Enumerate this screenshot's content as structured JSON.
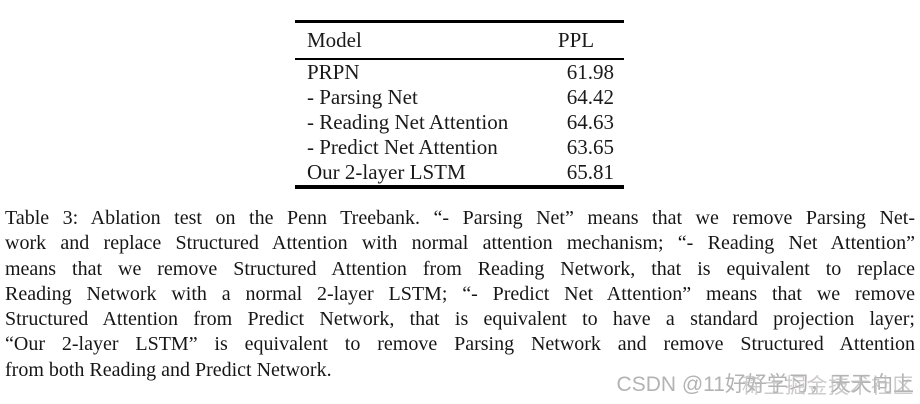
{
  "table": {
    "columns": [
      "Model",
      "PPL"
    ],
    "rows": [
      {
        "model": "PRPN",
        "ppl": "61.98"
      },
      {
        "model": "- Parsing Net",
        "ppl": "64.42"
      },
      {
        "model": "- Reading Net Attention",
        "ppl": "64.63"
      },
      {
        "model": "- Predict Net Attention",
        "ppl": "63.65"
      },
      {
        "model": "Our 2-layer LSTM",
        "ppl": "65.81"
      }
    ]
  },
  "chart_data": {
    "type": "table",
    "title": "Table 3: Ablation test on the Penn Treebank",
    "columns": [
      "Model",
      "PPL"
    ],
    "categories": [
      "PRPN",
      "- Parsing Net",
      "- Reading Net Attention",
      "- Predict Net Attention",
      "Our 2-layer LSTM"
    ],
    "values": [
      61.98,
      64.42,
      64.63,
      63.65,
      65.81
    ]
  },
  "caption": {
    "lines": [
      "Table 3:  Ablation test on the Penn Treebank.  “- Parsing Net” means that we remove Parsing Net-",
      "work and replace Structured Attention with normal attention mechanism; “- Reading Net Attention”",
      "means that we remove Structured Attention from Reading Network, that is equivalent to replace",
      "Reading Network with a normal 2-layer LSTM; “- Predict Net Attention” means that we remove",
      "Structured Attention from Predict Network, that is equivalent to have a standard projection layer;",
      "“Our 2-layer LSTM” is equivalent to remove Parsing Network and remove Structured Attention",
      "from both Reading and Predict Network."
    ]
  },
  "watermark": {
    "csdn": "CSDN @11好好学习，天天向上",
    "juejin": "稀土掘金技术社区"
  },
  "colors": {
    "text": "#161616",
    "rule": "#000000",
    "watermark": "#b3b3b3",
    "background": "#ffffff"
  }
}
